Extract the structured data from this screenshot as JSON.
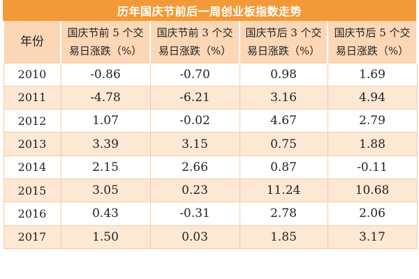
{
  "title": "历年国庆节前后一周创业板指数走势",
  "table": {
    "headers": [
      {
        "line1": "年份",
        "line2": ""
      },
      {
        "line1": "国庆节前 5 个交",
        "line2": "易日涨跌（%）"
      },
      {
        "line1": "国庆节前 3 个交",
        "line2": "易日涨跌（%）"
      },
      {
        "line1": "国庆节后 3 个交",
        "line2": "易日涨跌（%）"
      },
      {
        "line1": "国庆节后 5 个交",
        "line2": "易日涨跌（%）"
      }
    ],
    "rows": [
      [
        "2010",
        "-0.86",
        "-0.70",
        "0.98",
        "1.69"
      ],
      [
        "2011",
        "-4.78",
        "-6.21",
        "3.16",
        "4.94"
      ],
      [
        "2012",
        "1.07",
        "-0.02",
        "4.67",
        "2.79"
      ],
      [
        "2013",
        "3.39",
        "3.15",
        "0.75",
        "1.88"
      ],
      [
        "2014",
        "2.15",
        "2.66",
        "0.87",
        "-0.11"
      ],
      [
        "2015",
        "3.05",
        "0.23",
        "11.24",
        "10.68"
      ],
      [
        "2016",
        "0.43",
        "-0.31",
        "2.78",
        "2.06"
      ],
      [
        "2017",
        "1.50",
        "0.03",
        "1.85",
        "3.17"
      ]
    ]
  }
}
